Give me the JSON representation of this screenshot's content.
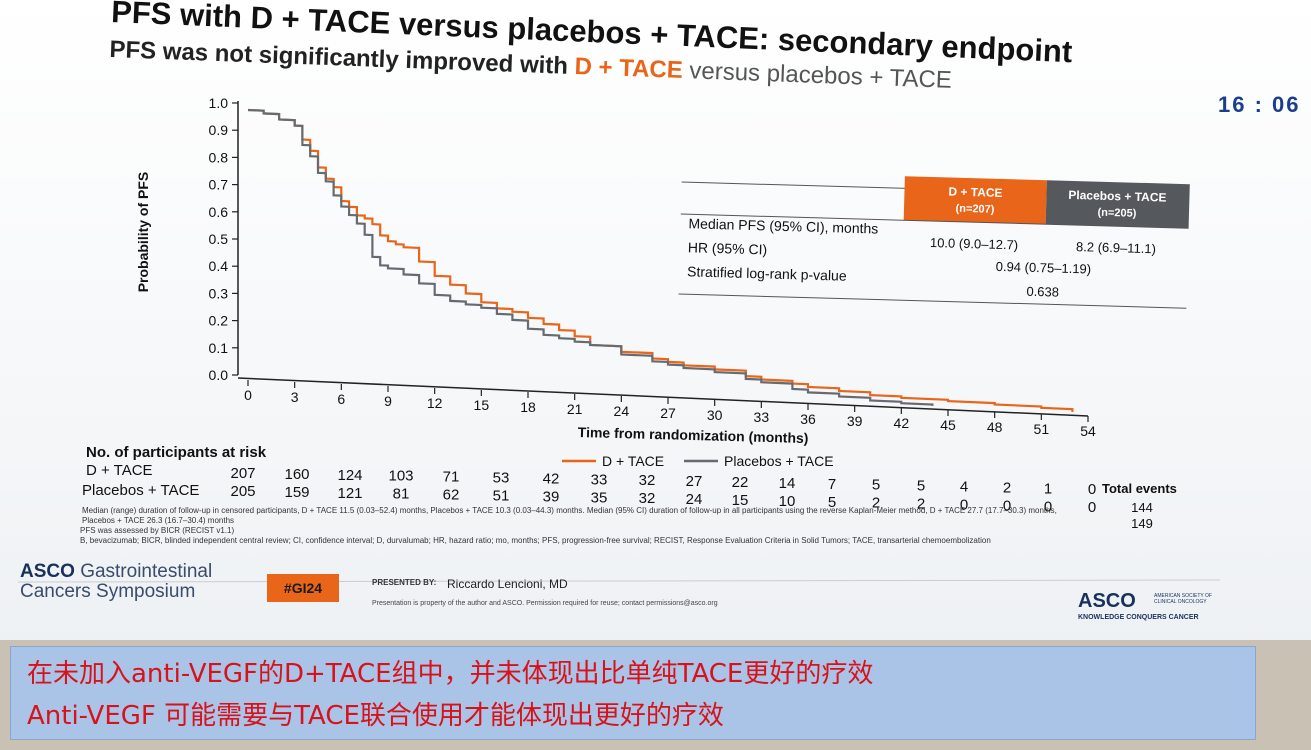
{
  "title": "PFS with D + TACE versus placebos + TACE: secondary endpoint",
  "subtitle": {
    "pre": "PFS was not significantly improved with ",
    "hl": "D + TACE",
    "post": " versus placebos + TACE"
  },
  "clock": "16 : 06",
  "chart_data": {
    "type": "line",
    "ylabel": "Probability of PFS",
    "xlabel": "Time from randomization (months)",
    "xlim": [
      0,
      54
    ],
    "ylim": [
      0,
      1
    ],
    "x_ticks": [
      0,
      3,
      6,
      9,
      12,
      15,
      18,
      21,
      24,
      27,
      30,
      33,
      36,
      39,
      42,
      45,
      48,
      51,
      54
    ],
    "y_ticks": [
      "0.0",
      "0.1",
      "0.2",
      "0.3",
      "0.4",
      "0.5",
      "0.6",
      "0.7",
      "0.8",
      "0.9",
      "1.0"
    ],
    "legend_position": "bottom-center",
    "series": [
      {
        "name": "D + TACE",
        "color": "#e8651a",
        "x": [
          0,
          1,
          2,
          3,
          3.5,
          4,
          4.5,
          5,
          5.5,
          6,
          6.5,
          7,
          7.5,
          8,
          8.5,
          9,
          9.5,
          10,
          11,
          12,
          13,
          14,
          15,
          16,
          17,
          18,
          19,
          20,
          21,
          22,
          24,
          26,
          27,
          28,
          30,
          32,
          33,
          35,
          36,
          38,
          40,
          42,
          45,
          48,
          51,
          53
        ],
        "y": [
          1.0,
          0.99,
          0.97,
          0.95,
          0.9,
          0.86,
          0.8,
          0.76,
          0.73,
          0.68,
          0.66,
          0.63,
          0.62,
          0.6,
          0.56,
          0.54,
          0.53,
          0.52,
          0.47,
          0.42,
          0.39,
          0.36,
          0.33,
          0.31,
          0.3,
          0.28,
          0.26,
          0.24,
          0.22,
          0.19,
          0.17,
          0.15,
          0.14,
          0.13,
          0.12,
          0.1,
          0.09,
          0.08,
          0.07,
          0.06,
          0.05,
          0.045,
          0.04,
          0.035,
          0.03,
          0.02
        ]
      },
      {
        "name": "Placebos + TACE",
        "color": "#666b72",
        "x": [
          0,
          1,
          2,
          3,
          3.5,
          4,
          4.5,
          5,
          5.5,
          6,
          6.5,
          7,
          7.5,
          8,
          8.5,
          9,
          10,
          11,
          12,
          13,
          14,
          15,
          16,
          17,
          18,
          19,
          20,
          21,
          22,
          24,
          26,
          27,
          28,
          30,
          32,
          33,
          35,
          36,
          38,
          40,
          42,
          44
        ],
        "y": [
          1.0,
          0.99,
          0.97,
          0.95,
          0.88,
          0.84,
          0.78,
          0.75,
          0.7,
          0.66,
          0.63,
          0.6,
          0.56,
          0.48,
          0.45,
          0.44,
          0.42,
          0.39,
          0.35,
          0.33,
          0.32,
          0.31,
          0.29,
          0.27,
          0.24,
          0.22,
          0.21,
          0.2,
          0.19,
          0.16,
          0.14,
          0.13,
          0.12,
          0.11,
          0.09,
          0.08,
          0.06,
          0.05,
          0.04,
          0.03,
          0.025,
          0.02
        ]
      }
    ],
    "risk_table": {
      "title": "No. of participants at risk",
      "total_title": "Total events",
      "rows": [
        {
          "label": "D + TACE",
          "values": [
            "207",
            "160",
            "124",
            "103",
            "71",
            "53",
            "42",
            "33",
            "32",
            "27",
            "22",
            "14",
            "7",
            "5",
            "5",
            "4",
            "2",
            "1",
            "0"
          ],
          "total": "144"
        },
        {
          "label": "Placebos + TACE",
          "values": [
            "205",
            "159",
            "121",
            "81",
            "62",
            "51",
            "39",
            "35",
            "32",
            "24",
            "15",
            "10",
            "5",
            "2",
            "2",
            "0",
            "0",
            "0",
            "0"
          ],
          "total": "149"
        }
      ]
    },
    "stats_table": {
      "col1": "D + TACE",
      "col1_n": "(n=207)",
      "col2": "Placebos + TACE",
      "col2_n": "(n=205)",
      "rows": [
        {
          "label": "Median PFS (95% CI), months",
          "v1": "10.0 (9.0–12.7)",
          "v2": "8.2 (6.9–11.1)"
        },
        {
          "label": "HR (95% CI)",
          "v": "0.94 (0.75–1.19)"
        },
        {
          "label": "Stratified log-rank p-value",
          "v": "0.638"
        }
      ]
    }
  },
  "footnotes": {
    "line1": "Median (range) duration of follow-up in censored participants, D + TACE 11.5 (0.03–52.4) months, Placebos + TACE 10.3 (0.03–44.3) months. Median (95% CI) duration of follow-up in all participants using the reverse Kaplan-Meier method, D + TACE 27.7 (17.7–30.3) months,",
    "line2": "Placebos + TACE 26.3 (16.7–30.4) months",
    "line3": "PFS was assessed by BICR (RECIST v1.1)",
    "line4": "B, bevacizumab; BICR, blinded independent central review; CI, confidence interval; D, durvalumab; HR, hazard ratio; mo, months; PFS, progression-free survival; RECIST, Response Evaluation Criteria in Solid Tumors; TACE, transarterial chemoembolization"
  },
  "footer": {
    "asco_left_1": "ASCO",
    "asco_left_2": "Gastrointestinal",
    "asco_left_3": "Cancers Symposium",
    "tag": "#GI24",
    "presented_by": "PRESENTED BY:",
    "presenter": "Riccardo Lencioni, MD",
    "property": "Presentation is property of the author and ASCO. Permission required for reuse; contact permissions@asco.org",
    "asco_right": "ASCO",
    "asco_right_small": "AMERICAN SOCIETY OF CLINICAL ONCOLOGY",
    "asco_right_tag": "KNOWLEDGE CONQUERS CANCER"
  },
  "banner": {
    "line1": "在未加入anti-VEGF的D+TACE组中，并未体现出比单纯TACE更好的疗效",
    "line2": "Anti-VEGF 可能需要与TACE联合使用才能体现出更好的疗效"
  }
}
